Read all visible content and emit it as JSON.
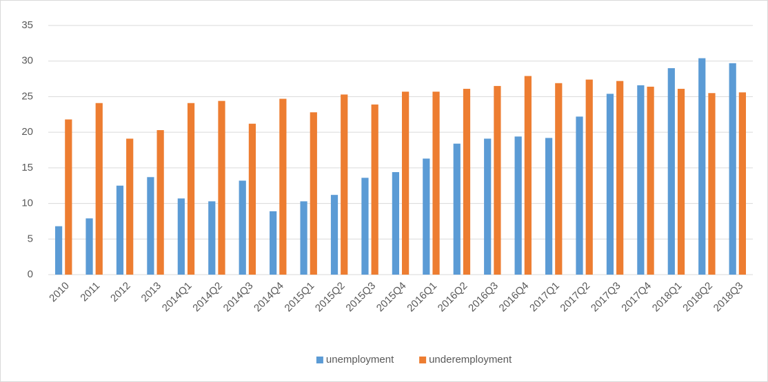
{
  "chart_data": {
    "type": "bar",
    "categories": [
      "2010",
      "2011",
      "2012",
      "2013",
      "2014Q1",
      "2014Q2",
      "2014Q3",
      "2014Q4",
      "2015Q1",
      "2015Q2",
      "2015Q3",
      "2015Q4",
      "2016Q1",
      "2016Q2",
      "2016Q3",
      "2016Q4",
      "2017Q1",
      "2017Q2",
      "2017Q3",
      "2017Q4",
      "2018Q1",
      "2018Q2",
      "2018Q3"
    ],
    "series": [
      {
        "name": "unemployment",
        "color": "#5b9bd5",
        "values": [
          6.8,
          7.9,
          12.5,
          13.7,
          10.7,
          10.3,
          13.2,
          8.9,
          10.3,
          11.2,
          13.6,
          14.4,
          16.3,
          18.4,
          19.1,
          19.4,
          19.2,
          22.2,
          25.4,
          26.6,
          29.0,
          30.4,
          29.7
        ]
      },
      {
        "name": "underemployment",
        "color": "#ed7d31",
        "values": [
          21.8,
          24.1,
          19.1,
          20.3,
          24.1,
          24.4,
          21.2,
          24.7,
          22.8,
          25.3,
          23.9,
          25.7,
          25.7,
          26.1,
          26.5,
          27.9,
          26.9,
          27.4,
          27.2,
          26.4,
          26.1,
          25.5,
          25.6
        ]
      }
    ],
    "ylim": [
      0,
      35
    ],
    "yticks": [
      0,
      5,
      10,
      15,
      20,
      25,
      30,
      35
    ],
    "grid": true,
    "legend": "bottom"
  }
}
